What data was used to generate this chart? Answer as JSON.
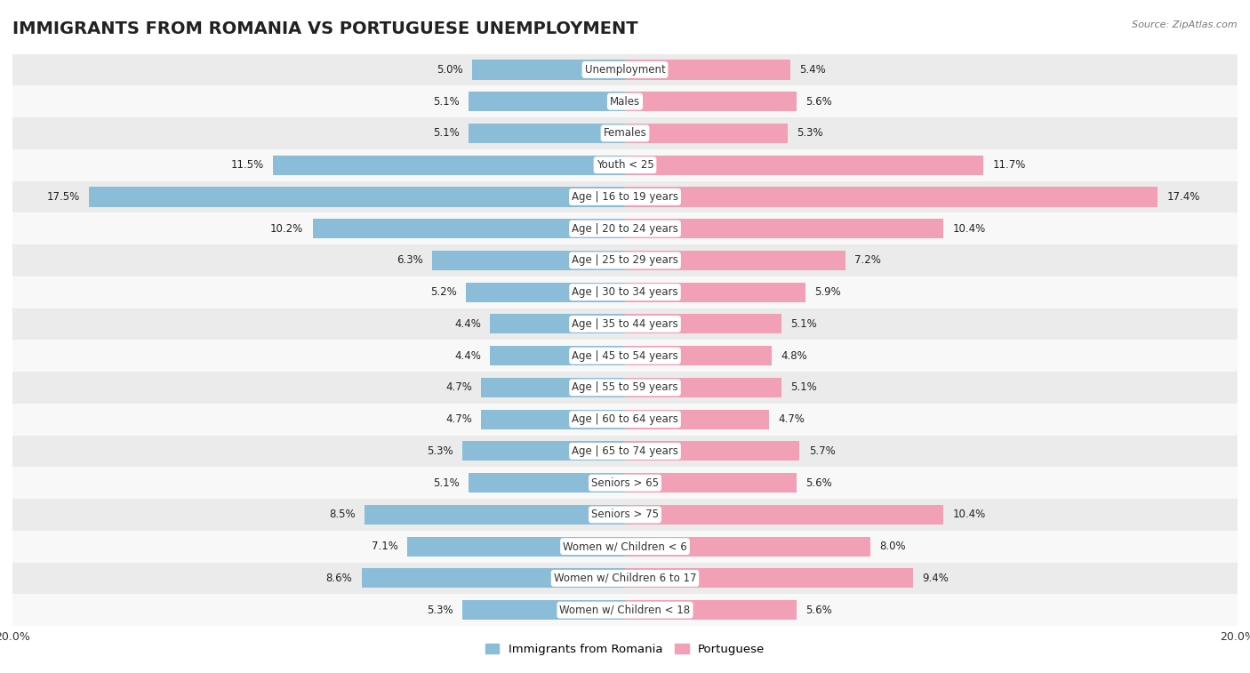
{
  "title": "IMMIGRANTS FROM ROMANIA VS PORTUGUESE UNEMPLOYMENT",
  "source": "Source: ZipAtlas.com",
  "categories": [
    "Unemployment",
    "Males",
    "Females",
    "Youth < 25",
    "Age | 16 to 19 years",
    "Age | 20 to 24 years",
    "Age | 25 to 29 years",
    "Age | 30 to 34 years",
    "Age | 35 to 44 years",
    "Age | 45 to 54 years",
    "Age | 55 to 59 years",
    "Age | 60 to 64 years",
    "Age | 65 to 74 years",
    "Seniors > 65",
    "Seniors > 75",
    "Women w/ Children < 6",
    "Women w/ Children 6 to 17",
    "Women w/ Children < 18"
  ],
  "romania_values": [
    5.0,
    5.1,
    5.1,
    11.5,
    17.5,
    10.2,
    6.3,
    5.2,
    4.4,
    4.4,
    4.7,
    4.7,
    5.3,
    5.1,
    8.5,
    7.1,
    8.6,
    5.3
  ],
  "portuguese_values": [
    5.4,
    5.6,
    5.3,
    11.7,
    17.4,
    10.4,
    7.2,
    5.9,
    5.1,
    4.8,
    5.1,
    4.7,
    5.7,
    5.6,
    10.4,
    8.0,
    9.4,
    5.6
  ],
  "romania_color": "#8bbdd9",
  "portuguese_color": "#f2a0b5",
  "background_row_light": "#ebebeb",
  "background_row_white": "#f8f8f8",
  "xlim": 20.0,
  "bar_height": 0.62,
  "legend_romania": "Immigrants from Romania",
  "legend_portuguese": "Portuguese",
  "title_fontsize": 14,
  "value_fontsize": 8.5,
  "category_fontsize": 8.5,
  "label_pill_color": "#ffffff"
}
